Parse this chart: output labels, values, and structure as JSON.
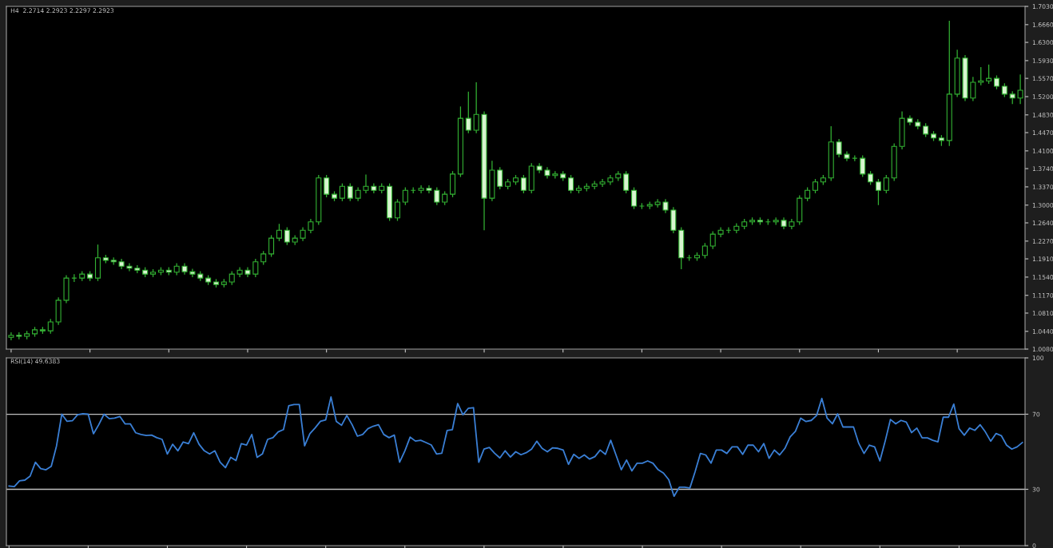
{
  "chart_data": [
    {
      "type": "candlestick",
      "title": "H4  2.2714 2.2923 2.2297 2.2923",
      "color": "#33b233",
      "tick_labels": "y",
      "categories": [
        null,
        null,
        null,
        null,
        null,
        null,
        null,
        null,
        null,
        null,
        null,
        null,
        null,
        null,
        null,
        null,
        null,
        null,
        null,
        null,
        null,
        null,
        null,
        null,
        null,
        null,
        null,
        null,
        null,
        null,
        null,
        null,
        null,
        null,
        null,
        null,
        null,
        null,
        null,
        null,
        null,
        null,
        null,
        null,
        null,
        null,
        null,
        null,
        null,
        null,
        null,
        null,
        null,
        null,
        null,
        null,
        null,
        null,
        null,
        null,
        null,
        null,
        null,
        null,
        null,
        null,
        null,
        null,
        null,
        null,
        null,
        null,
        null,
        null,
        null,
        null,
        null,
        null,
        null,
        null,
        null,
        null,
        null,
        null,
        null,
        null,
        null,
        null,
        null,
        null,
        null,
        null,
        null,
        null,
        null,
        null,
        null,
        null,
        null,
        null,
        null,
        null,
        null,
        null,
        null,
        null,
        null,
        null,
        null,
        null,
        null,
        null,
        null,
        null,
        null,
        null,
        null,
        null,
        null,
        null,
        null,
        null,
        null,
        null,
        null,
        null,
        null,
        null,
        null
      ],
      "ohlc": [
        [
          1.032,
          1.042,
          1.026,
          1.036
        ],
        [
          1.036,
          1.042,
          1.028,
          1.034
        ],
        [
          1.034,
          1.045,
          1.028,
          1.039
        ],
        [
          1.039,
          1.053,
          1.033,
          1.047
        ],
        [
          1.047,
          1.053,
          1.039,
          1.045
        ],
        [
          1.045,
          1.069,
          1.039,
          1.063
        ],
        [
          1.063,
          1.113,
          1.057,
          1.107
        ],
        [
          1.107,
          1.158,
          1.101,
          1.152
        ],
        [
          1.152,
          1.16,
          1.144,
          1.152
        ],
        [
          1.152,
          1.166,
          1.146,
          1.16
        ],
        [
          1.16,
          1.166,
          1.146,
          1.152
        ],
        [
          1.152,
          1.22,
          1.146,
          1.193
        ],
        [
          1.193,
          1.199,
          1.182,
          1.188
        ],
        [
          1.188,
          1.194,
          1.179,
          1.185
        ],
        [
          1.185,
          1.191,
          1.17,
          1.176
        ],
        [
          1.176,
          1.182,
          1.166,
          1.172
        ],
        [
          1.172,
          1.178,
          1.162,
          1.168
        ],
        [
          1.168,
          1.174,
          1.154,
          1.16
        ],
        [
          1.16,
          1.17,
          1.154,
          1.164
        ],
        [
          1.164,
          1.174,
          1.158,
          1.168
        ],
        [
          1.168,
          1.174,
          1.158,
          1.164
        ],
        [
          1.164,
          1.182,
          1.158,
          1.176
        ],
        [
          1.176,
          1.182,
          1.159,
          1.165
        ],
        [
          1.165,
          1.171,
          1.154,
          1.16
        ],
        [
          1.16,
          1.166,
          1.146,
          1.152
        ],
        [
          1.152,
          1.158,
          1.138,
          1.144
        ],
        [
          1.144,
          1.15,
          1.133,
          1.139
        ],
        [
          1.139,
          1.15,
          1.133,
          1.144
        ],
        [
          1.144,
          1.166,
          1.138,
          1.16
        ],
        [
          1.16,
          1.174,
          1.154,
          1.168
        ],
        [
          1.168,
          1.174,
          1.154,
          1.16
        ],
        [
          1.16,
          1.191,
          1.154,
          1.185
        ],
        [
          1.185,
          1.207,
          1.179,
          1.201
        ],
        [
          1.201,
          1.239,
          1.195,
          1.233
        ],
        [
          1.233,
          1.262,
          1.227,
          1.249
        ],
        [
          1.249,
          1.255,
          1.219,
          1.225
        ],
        [
          1.225,
          1.239,
          1.219,
          1.233
        ],
        [
          1.233,
          1.255,
          1.227,
          1.249
        ],
        [
          1.249,
          1.272,
          1.243,
          1.266
        ],
        [
          1.266,
          1.361,
          1.26,
          1.355
        ],
        [
          1.355,
          1.361,
          1.316,
          1.322
        ],
        [
          1.322,
          1.328,
          1.308,
          1.314
        ],
        [
          1.314,
          1.344,
          1.308,
          1.338
        ],
        [
          1.338,
          1.344,
          1.308,
          1.314
        ],
        [
          1.314,
          1.336,
          1.308,
          1.33
        ],
        [
          1.33,
          1.362,
          1.324,
          1.338
        ],
        [
          1.338,
          1.344,
          1.324,
          1.33
        ],
        [
          1.33,
          1.344,
          1.324,
          1.338
        ],
        [
          1.338,
          1.344,
          1.268,
          1.274
        ],
        [
          1.274,
          1.312,
          1.268,
          1.306
        ],
        [
          1.306,
          1.336,
          1.3,
          1.33
        ],
        [
          1.33,
          1.336,
          1.324,
          1.33
        ],
        [
          1.33,
          1.34,
          1.324,
          1.334
        ],
        [
          1.334,
          1.34,
          1.324,
          1.33
        ],
        [
          1.33,
          1.336,
          1.3,
          1.306
        ],
        [
          1.306,
          1.328,
          1.3,
          1.322
        ],
        [
          1.322,
          1.369,
          1.316,
          1.363
        ],
        [
          1.363,
          1.5,
          1.357,
          1.476
        ],
        [
          1.476,
          1.53,
          1.446,
          1.452
        ],
        [
          1.452,
          1.549,
          1.446,
          1.484
        ],
        [
          1.484,
          1.49,
          1.249,
          1.314
        ],
        [
          1.314,
          1.39,
          1.308,
          1.371
        ],
        [
          1.371,
          1.377,
          1.332,
          1.338
        ],
        [
          1.338,
          1.353,
          1.332,
          1.347
        ],
        [
          1.347,
          1.361,
          1.341,
          1.355
        ],
        [
          1.355,
          1.361,
          1.324,
          1.33
        ],
        [
          1.33,
          1.385,
          1.324,
          1.379
        ],
        [
          1.379,
          1.385,
          1.365,
          1.371
        ],
        [
          1.371,
          1.377,
          1.354,
          1.36
        ],
        [
          1.36,
          1.369,
          1.354,
          1.363
        ],
        [
          1.363,
          1.369,
          1.349,
          1.355
        ],
        [
          1.355,
          1.361,
          1.324,
          1.33
        ],
        [
          1.33,
          1.34,
          1.324,
          1.334
        ],
        [
          1.334,
          1.344,
          1.328,
          1.338
        ],
        [
          1.338,
          1.349,
          1.332,
          1.343
        ],
        [
          1.343,
          1.353,
          1.337,
          1.347
        ],
        [
          1.347,
          1.361,
          1.341,
          1.355
        ],
        [
          1.355,
          1.369,
          1.349,
          1.363
        ],
        [
          1.363,
          1.369,
          1.324,
          1.33
        ],
        [
          1.33,
          1.336,
          1.292,
          1.298
        ],
        [
          1.298,
          1.304,
          1.292,
          1.298
        ],
        [
          1.298,
          1.307,
          1.292,
          1.301
        ],
        [
          1.301,
          1.312,
          1.295,
          1.306
        ],
        [
          1.306,
          1.312,
          1.284,
          1.29
        ],
        [
          1.29,
          1.296,
          1.243,
          1.249
        ],
        [
          1.249,
          1.255,
          1.17,
          1.193
        ],
        [
          1.193,
          1.199,
          1.187,
          1.193
        ],
        [
          1.193,
          1.204,
          1.187,
          1.198
        ],
        [
          1.198,
          1.223,
          1.192,
          1.217
        ],
        [
          1.217,
          1.247,
          1.211,
          1.241
        ],
        [
          1.241,
          1.255,
          1.235,
          1.249
        ],
        [
          1.249,
          1.255,
          1.243,
          1.249
        ],
        [
          1.249,
          1.263,
          1.243,
          1.257
        ],
        [
          1.257,
          1.272,
          1.251,
          1.266
        ],
        [
          1.266,
          1.275,
          1.26,
          1.269
        ],
        [
          1.269,
          1.275,
          1.26,
          1.266
        ],
        [
          1.266,
          1.272,
          1.26,
          1.266
        ],
        [
          1.266,
          1.275,
          1.26,
          1.269
        ],
        [
          1.269,
          1.275,
          1.251,
          1.257
        ],
        [
          1.257,
          1.272,
          1.251,
          1.266
        ],
        [
          1.266,
          1.32,
          1.26,
          1.314
        ],
        [
          1.314,
          1.336,
          1.308,
          1.33
        ],
        [
          1.33,
          1.353,
          1.324,
          1.347
        ],
        [
          1.347,
          1.361,
          1.341,
          1.355
        ],
        [
          1.355,
          1.46,
          1.349,
          1.428
        ],
        [
          1.428,
          1.434,
          1.397,
          1.403
        ],
        [
          1.403,
          1.409,
          1.389,
          1.395
        ],
        [
          1.395,
          1.401,
          1.389,
          1.395
        ],
        [
          1.395,
          1.401,
          1.357,
          1.363
        ],
        [
          1.363,
          1.369,
          1.341,
          1.347
        ],
        [
          1.347,
          1.353,
          1.3,
          1.33
        ],
        [
          1.33,
          1.361,
          1.324,
          1.355
        ],
        [
          1.355,
          1.425,
          1.349,
          1.419
        ],
        [
          1.419,
          1.49,
          1.413,
          1.476
        ],
        [
          1.476,
          1.482,
          1.462,
          1.468
        ],
        [
          1.468,
          1.474,
          1.454,
          1.46
        ],
        [
          1.46,
          1.466,
          1.438,
          1.444
        ],
        [
          1.444,
          1.45,
          1.43,
          1.436
        ],
        [
          1.436,
          1.442,
          1.42,
          1.431
        ],
        [
          1.431,
          1.674,
          1.42,
          1.525
        ],
        [
          1.525,
          1.615,
          1.519,
          1.598
        ],
        [
          1.598,
          1.604,
          1.511,
          1.517
        ],
        [
          1.517,
          1.56,
          1.511,
          1.549
        ],
        [
          1.549,
          1.58,
          1.543,
          1.552
        ],
        [
          1.552,
          1.585,
          1.546,
          1.557
        ],
        [
          1.557,
          1.563,
          1.535,
          1.541
        ],
        [
          1.541,
          1.547,
          1.519,
          1.525
        ],
        [
          1.525,
          1.531,
          1.505,
          1.517
        ],
        [
          1.517,
          1.565,
          1.505,
          1.533
        ]
      ],
      "ylim": [
        1.008,
        1.703
      ],
      "yticks": [
        {
          "value": 1.008,
          "label": "1.0080"
        },
        {
          "value": 1.044,
          "label": "1.0440"
        },
        {
          "value": 1.081,
          "label": "1.0810"
        },
        {
          "value": 1.117,
          "label": "1.1170"
        },
        {
          "value": 1.154,
          "label": "1.1540"
        },
        {
          "value": 1.191,
          "label": "1.1910"
        },
        {
          "value": 1.227,
          "label": "1.2270"
        },
        {
          "value": 1.264,
          "label": "1.2640"
        },
        {
          "value": 1.3,
          "label": "1.3000"
        },
        {
          "value": 1.337,
          "label": "1.3370"
        },
        {
          "value": 1.374,
          "label": "1.3740"
        },
        {
          "value": 1.41,
          "label": "1.4100"
        },
        {
          "value": 1.447,
          "label": "1.4470"
        },
        {
          "value": 1.483,
          "label": "1.4830"
        },
        {
          "value": 1.52,
          "label": "1.5200"
        },
        {
          "value": 1.557,
          "label": "1.5570"
        },
        {
          "value": 1.593,
          "label": "1.5930"
        },
        {
          "value": 1.63,
          "label": "1.6300"
        },
        {
          "value": 1.666,
          "label": "1.6660"
        },
        {
          "value": 1.703,
          "label": "1.7030"
        }
      ]
    },
    {
      "type": "line",
      "title": "RSI(14) 49.6383",
      "tick_labels": "y",
      "ylim": [
        0,
        100
      ],
      "yticks": [
        0,
        30,
        70,
        100
      ],
      "ref_lines": [
        {
          "axis": "y",
          "value": 70,
          "color": "#c0c0c0"
        },
        {
          "axis": "y",
          "value": 30,
          "color": "#c0c0c0"
        }
      ],
      "categories": [
        null,
        null,
        null,
        null,
        null,
        null,
        null,
        null,
        null,
        null,
        null,
        null,
        null,
        null,
        null,
        null,
        null,
        null,
        null,
        null,
        null,
        null,
        null,
        null,
        null,
        null,
        null,
        null,
        null,
        null,
        null,
        null,
        null,
        null,
        null,
        null,
        null,
        null,
        null,
        null,
        null,
        null,
        null,
        null,
        null,
        null,
        null,
        null,
        null,
        null,
        null,
        null,
        null,
        null,
        null,
        null,
        null,
        null,
        null,
        null,
        null,
        null,
        null,
        null,
        null,
        null,
        null,
        null,
        null,
        null,
        null,
        null,
        null,
        null,
        null,
        null,
        null,
        null,
        null,
        null,
        null,
        null,
        null,
        null,
        null,
        null,
        null,
        null,
        null,
        null,
        null,
        null,
        null,
        null,
        null,
        null,
        null,
        null,
        null,
        null,
        null,
        null,
        null,
        null,
        null,
        null,
        null,
        null,
        null,
        null,
        null,
        null,
        null,
        null,
        null,
        null,
        null,
        null,
        null,
        null,
        null,
        null,
        null,
        null,
        null,
        null,
        null,
        null,
        null,
        null,
        null,
        null,
        null,
        null,
        null,
        null,
        null,
        null,
        null,
        null,
        null,
        null,
        null,
        null,
        null,
        null,
        null,
        null,
        null,
        null,
        null,
        null,
        null,
        null,
        null,
        null,
        null,
        null,
        null,
        null,
        null,
        null,
        null,
        null,
        null,
        null,
        null,
        null,
        null,
        null,
        null,
        null,
        null,
        null,
        null,
        null,
        null,
        null,
        null,
        null,
        null,
        null,
        null,
        null,
        null,
        null,
        null,
        null,
        null,
        null,
        null,
        null,
        null
      ],
      "series": [
        {
          "color": "#3a7fd5",
          "values": [
            31.7,
            31.4,
            34.5,
            34.9,
            37,
            44.4,
            41,
            40.4,
            42.2,
            53.1,
            70,
            66.2,
            66.5,
            69.7,
            70.3,
            70,
            59.6,
            64.4,
            70,
            67.6,
            67.9,
            68.8,
            64.8,
            64.8,
            60.1,
            59.2,
            58.7,
            58.9,
            57.5,
            56.6,
            48.8,
            54,
            50.5,
            55.2,
            54.3,
            60.1,
            54,
            50.5,
            48.8,
            50.5,
            44.4,
            41.5,
            47,
            45.3,
            54.3,
            53.6,
            59.2,
            47,
            48.8,
            56.6,
            57.5,
            60.6,
            61.8,
            74.5,
            75.2,
            75.2,
            53.1,
            59.6,
            62.7,
            66.2,
            67,
            79.2,
            66.2,
            64.1,
            69.3,
            64.4,
            58.3,
            59.2,
            62.3,
            63.6,
            64.4,
            59.2,
            57.5,
            58.9,
            44.4,
            50.5,
            57.8,
            55.7,
            56.1,
            54.9,
            53.6,
            48.8,
            49.2,
            61.3,
            61.8,
            75.7,
            69.7,
            73.1,
            73.5,
            44.4,
            51.4,
            52.3,
            49.2,
            46.7,
            50.5,
            47.2,
            50,
            48.4,
            49.5,
            51.4,
            55.6,
            51.8,
            50,
            52.1,
            51.8,
            50.9,
            43.3,
            48.6,
            46.5,
            48.3,
            46.1,
            47.4,
            50.9,
            48.6,
            56.1,
            48.3,
            40.4,
            45.6,
            39.8,
            43.9,
            43.9,
            45.1,
            43.9,
            40.4,
            38.6,
            35.1,
            26.3,
            31.1,
            31.1,
            30.7,
            39.5,
            49.1,
            48.3,
            43.9,
            50.9,
            50.9,
            49.1,
            52.6,
            52.6,
            48.6,
            53.5,
            53.5,
            50,
            54.4,
            46.5,
            50.9,
            48.3,
            51.8,
            57.9,
            60.9,
            67.9,
            66.1,
            66.7,
            69.3,
            78.4,
            67.9,
            64.9,
            70.2,
            63.2,
            63.2,
            63.2,
            54.4,
            49.1,
            53.5,
            52.6,
            45.1,
            55.6,
            67.2,
            64.9,
            66.7,
            65.8,
            60.2,
            62.6,
            57.4,
            57.4,
            56.1,
            55.3,
            68.4,
            68.4,
            75.4,
            62.3,
            58.8,
            62.6,
            61.4,
            64.4,
            60.5,
            55.6,
            59.7,
            58.6,
            53.5,
            51.4,
            52.6,
            54.9
          ]
        }
      ]
    }
  ]
}
